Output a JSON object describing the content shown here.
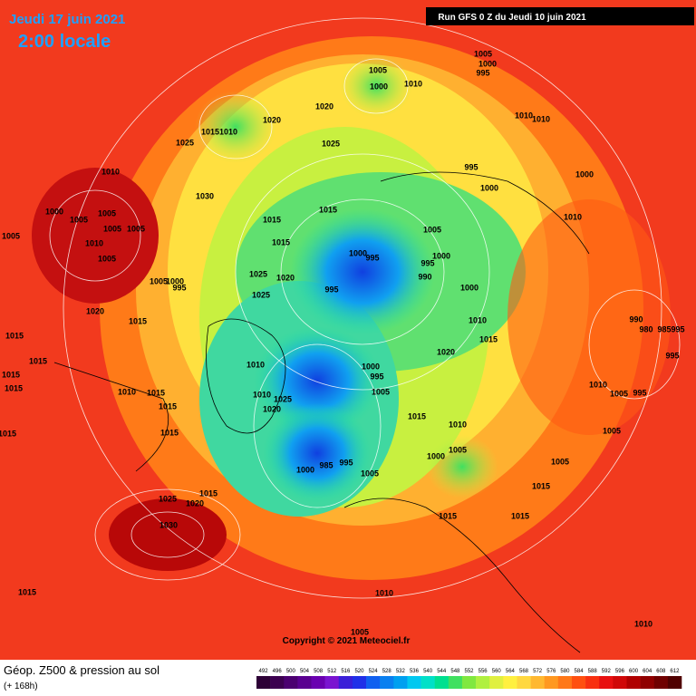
{
  "header": {
    "date": "Jeudi 17 juin 2021",
    "time": "2:00 locale",
    "run": "Run GFS 0 Z du Jeudi 10 juin 2021"
  },
  "copyright": "Copyright © 2021 Meteociel.fr",
  "footer": {
    "title": "Géop. Z500 & pression au sol",
    "subtitle": "(+ 168h)"
  },
  "isobar_labels": [
    1005,
    1000,
    1010,
    1005,
    1000,
    995,
    1015,
    1010,
    1020,
    1020,
    1025,
    1025,
    1010,
    1010,
    995,
    1000,
    1000,
    1010,
    1030,
    1015,
    1000,
    1005,
    1005,
    1005,
    1005,
    1010,
    1005,
    1010,
    1005,
    1015,
    1015,
    1005,
    1000,
    995,
    1000,
    995,
    990,
    1005,
    1000,
    995,
    1025,
    1020,
    1025,
    1000,
    995,
    1020,
    1015,
    1010,
    1015,
    990,
    980,
    985,
    995,
    1015,
    1015,
    1020,
    995,
    1015,
    1015,
    1000,
    995,
    1010,
    1005,
    1010,
    1005,
    995,
    1010,
    1015,
    1010,
    1025,
    1015,
    1020,
    1015,
    1010,
    1005,
    1015,
    1015,
    1005,
    1000,
    1000,
    985,
    995,
    1005,
    1005,
    1015,
    1015,
    1025,
    1020,
    1015,
    1015,
    1030,
    1015,
    1010,
    1010,
    1005
  ],
  "colorbar": {
    "ticks": [
      492,
      496,
      500,
      504,
      508,
      512,
      516,
      520,
      524,
      528,
      532,
      536,
      540,
      544,
      548,
      552,
      556,
      560,
      564,
      568,
      572,
      576,
      580,
      584,
      588,
      592,
      596,
      600,
      604,
      608,
      612
    ],
    "colors": [
      "#2d0036",
      "#3c0050",
      "#4b0070",
      "#5a0090",
      "#6a00b0",
      "#7a14d0",
      "#3a1fd8",
      "#2030e8",
      "#1060f0",
      "#0a80f0",
      "#00a0f0",
      "#00c8f0",
      "#00e0c8",
      "#00e090",
      "#40e060",
      "#80e840",
      "#b0f040",
      "#e0f040",
      "#fff040",
      "#ffd840",
      "#ffb830",
      "#ff9820",
      "#ff7818",
      "#ff5010",
      "#f83010",
      "#e81010",
      "#d00808",
      "#b00000",
      "#900000",
      "#700000",
      "#500000"
    ]
  }
}
